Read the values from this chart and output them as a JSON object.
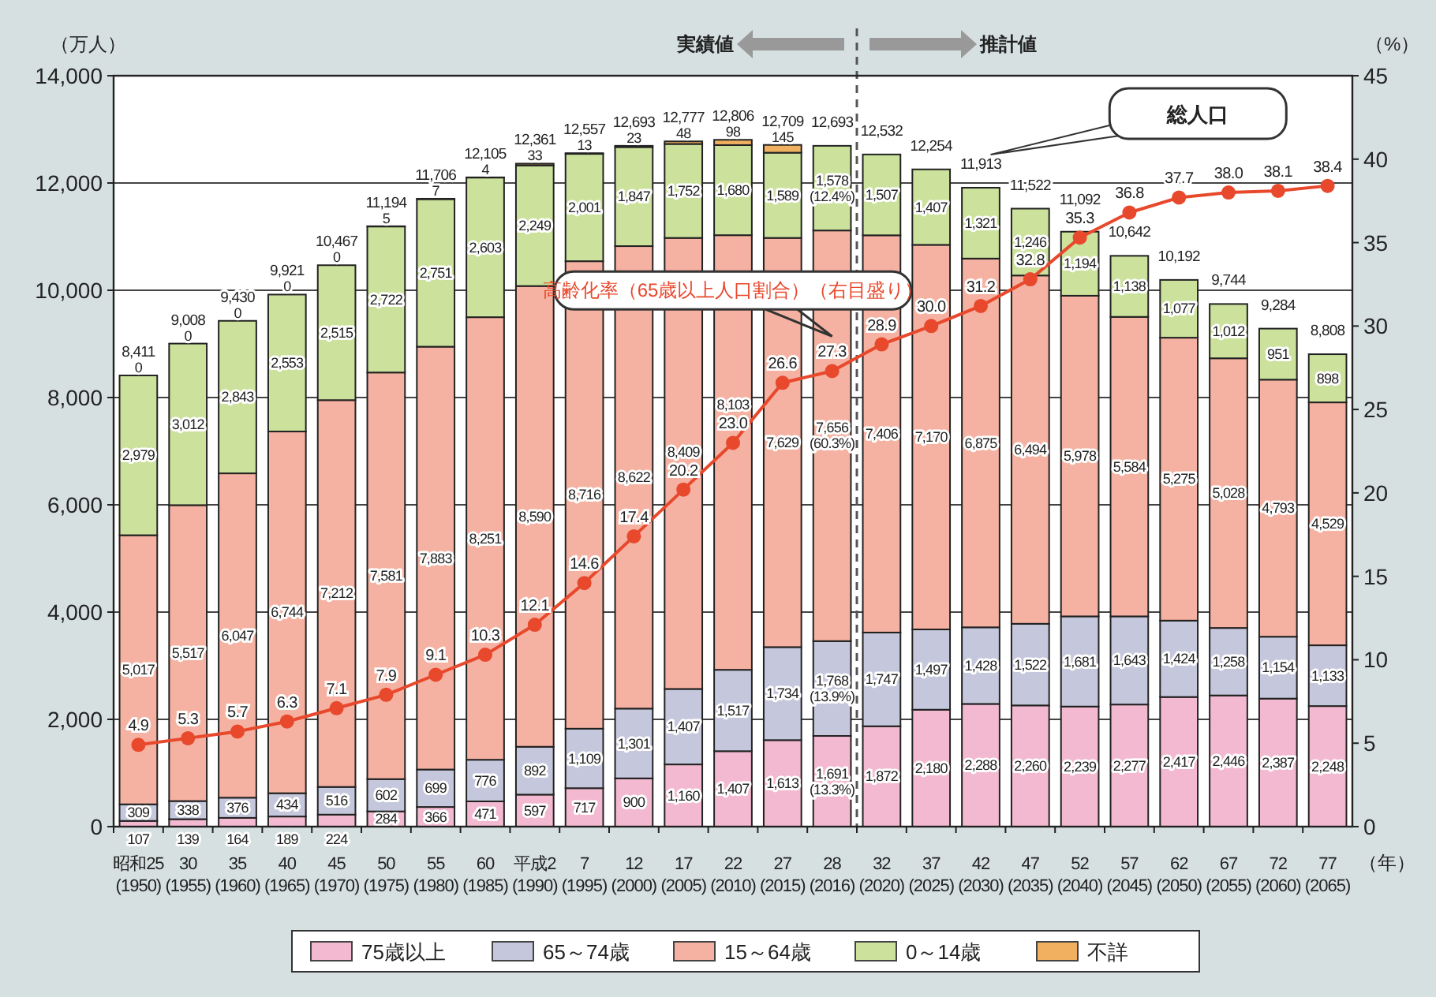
{
  "chart_data": {
    "type": "bar",
    "stacked": true,
    "categories": [
      "昭和25\n(1950)",
      "30\n(1955)",
      "35\n(1960)",
      "40\n(1965)",
      "45\n(1970)",
      "50\n(1975)",
      "55\n(1980)",
      "60\n(1985)",
      "平成2\n(1990)",
      "7\n(1995)",
      "12\n(2000)",
      "17\n(2005)",
      "22\n(2010)",
      "27\n(2015)",
      "28\n(2016)",
      "32\n(2020)",
      "37\n(2025)",
      "42\n(2030)",
      "47\n(2035)",
      "52\n(2040)",
      "57\n(2045)",
      "62\n(2050)",
      "67\n(2055)",
      "72\n(2060)",
      "77\n(2065)"
    ],
    "series": [
      {
        "name": "75歳以上",
        "color": "#f3b9d0",
        "values": [
          107,
          139,
          164,
          189,
          224,
          284,
          366,
          471,
          597,
          717,
          900,
          1160,
          1407,
          1613,
          1691,
          1872,
          2180,
          2288,
          2260,
          2239,
          2277,
          2417,
          2446,
          2387,
          2248
        ],
        "value_labels": [
          "107",
          "139",
          "164",
          "189",
          "224",
          "284",
          "366",
          "471",
          "597",
          "717",
          "900",
          "1,160",
          "1,407",
          "1,613",
          "1,691\n(13.3%)",
          "1,872",
          "2,180",
          "2,288",
          "2,260",
          "2,239",
          "2,277",
          "2,417",
          "2,446",
          "2,387",
          "2,248"
        ]
      },
      {
        "name": "65～74歳",
        "color": "#c5c7dc",
        "values": [
          309,
          338,
          376,
          434,
          516,
          602,
          699,
          776,
          892,
          1109,
          1301,
          1407,
          1517,
          1734,
          1768,
          1747,
          1497,
          1428,
          1522,
          1681,
          1643,
          1424,
          1258,
          1154,
          1133
        ],
        "value_labels": [
          "309",
          "338",
          "376",
          "434",
          "516",
          "602",
          "699",
          "776",
          "892",
          "1,109",
          "1,301",
          "1,407",
          "1,517",
          "1,734",
          "1,768\n(13.9%)",
          "1,747",
          "1,497",
          "1,428",
          "1,522",
          "1,681",
          "1,643",
          "1,424",
          "1,258",
          "1,154",
          "1,133"
        ]
      },
      {
        "name": "15～64歳",
        "color": "#f5b1a1",
        "values": [
          5017,
          5517,
          6047,
          6744,
          7212,
          7581,
          7883,
          8251,
          8590,
          8716,
          8622,
          8409,
          8103,
          7629,
          7656,
          7406,
          7170,
          6875,
          6494,
          5978,
          5584,
          5275,
          5028,
          4793,
          4529
        ],
        "value_labels": [
          "5,017",
          "5,517",
          "6,047",
          "6,744",
          "7,212",
          "7,581",
          "7,883",
          "8,251",
          "8,590",
          "8,716",
          "8,622",
          "8,409",
          "8,103",
          "7,629",
          "7,656\n(60.3%)",
          "7,406",
          "7,170",
          "6,875",
          "6,494",
          "5,978",
          "5,584",
          "5,275",
          "5,028",
          "4,793",
          "4,529"
        ]
      },
      {
        "name": "0～14歳",
        "color": "#cbe19c",
        "values": [
          2979,
          3012,
          2843,
          2553,
          2515,
          2722,
          2751,
          2603,
          2249,
          2001,
          1847,
          1752,
          1680,
          1589,
          1578,
          1507,
          1407,
          1321,
          1246,
          1194,
          1138,
          1077,
          1012,
          951,
          898
        ],
        "value_labels": [
          "2,979",
          "3,012",
          "2,843",
          "2,553",
          "2,515",
          "2,722",
          "2,751",
          "2,603",
          "2,249",
          "2,001",
          "1,847",
          "1,752",
          "1,680",
          "1,589",
          "1,578\n(12.4%)",
          "1,507",
          "1,407",
          "1,321",
          "1,246",
          "1,194",
          "1,138",
          "1,077",
          "1,012",
          "951",
          "898"
        ]
      },
      {
        "name": "不詳",
        "color": "#f0b060",
        "values": [
          0,
          0,
          0,
          0,
          0,
          5,
          7,
          4,
          33,
          13,
          23,
          48,
          98,
          145,
          null,
          null,
          null,
          null,
          null,
          null,
          null,
          null,
          null,
          null,
          null
        ],
        "value_labels": [
          "0",
          "0",
          "0",
          "0",
          "0",
          "5",
          "7",
          "4",
          "33",
          "13",
          "23",
          "48",
          "98",
          "145",
          null,
          null,
          null,
          null,
          null,
          null,
          null,
          null,
          null,
          null,
          null
        ]
      },
      {
        "name": "高齢化率（65歳以上人口割合）（右目盛り）",
        "type": "line",
        "axis": "y2",
        "color": "#e8482c",
        "marker": "circle",
        "line_style": "solid",
        "values": [
          4.9,
          5.3,
          5.7,
          6.3,
          7.1,
          7.9,
          9.1,
          10.3,
          12.1,
          14.6,
          17.4,
          20.2,
          23.0,
          26.6,
          27.3,
          28.9,
          30.0,
          31.2,
          32.8,
          35.3,
          36.8,
          37.7,
          38.0,
          38.1,
          38.4
        ],
        "value_labels": [
          "4.9",
          "5.3",
          "5.7",
          "6.3",
          "7.1",
          "7.9",
          "9.1",
          "10.3",
          "12.1",
          "14.6",
          "17.4",
          "20.2",
          "23.0",
          "26.6",
          "27.3",
          "28.9",
          "30.0",
          "31.2",
          "32.8",
          "35.3",
          "36.8",
          "37.7",
          "38.0",
          "38.1",
          "38.4"
        ]
      }
    ],
    "totals": [
      "8,411",
      "9,008",
      "9,430",
      "9,921",
      "10,467",
      "11,194",
      "11,706",
      "12,105",
      "12,361",
      "12,557",
      "12,693",
      "12,777",
      "12,806",
      "12,709",
      "12,693",
      "12,532",
      "12,254",
      "11,913",
      "11,522",
      "11,092",
      "10,642",
      "10,192",
      "9,744",
      "9,284",
      "8,808"
    ],
    "ylabel": "（万人）",
    "y2label": "（%）",
    "xlabel": "（年）",
    "ylim": [
      0,
      14000
    ],
    "yticks": [
      0,
      {
        "value": 2000,
        "label": "2,000"
      },
      {
        "value": 4000,
        "label": "4,000"
      },
      {
        "value": 6000,
        "label": "6,000"
      },
      {
        "value": 8000,
        "label": "8,000"
      },
      {
        "value": 10000,
        "label": "10,000"
      },
      {
        "value": 12000,
        "label": "12,000"
      },
      {
        "value": 14000,
        "label": "14,000"
      }
    ],
    "y2lim": [
      0,
      45
    ],
    "y2ticks": [
      0,
      5,
      10,
      15,
      20,
      25,
      30,
      35,
      40,
      45
    ],
    "grid": "y",
    "legend": "bottom",
    "annotations": [
      "実績値",
      "推計値",
      "総人口"
    ]
  }
}
